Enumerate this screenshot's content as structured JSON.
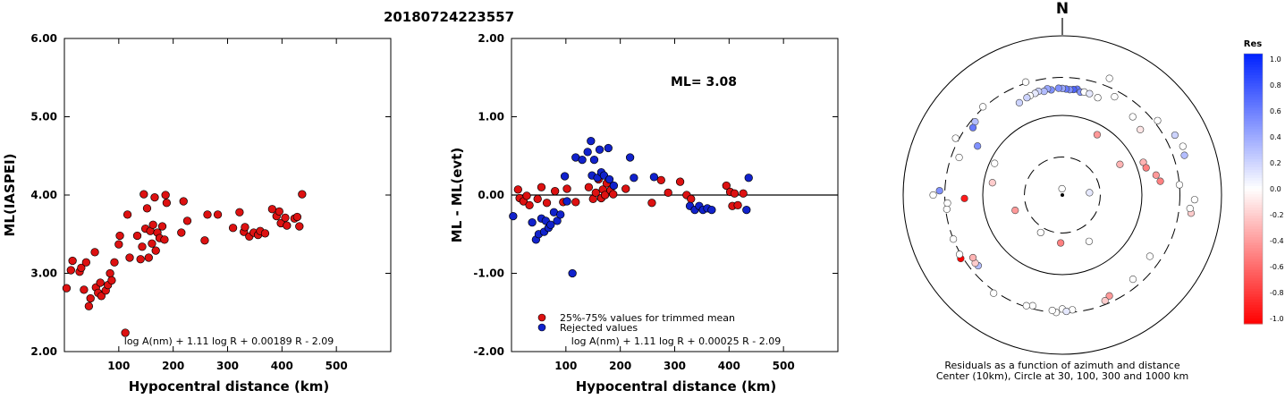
{
  "event_id": "20180724223557",
  "chart_data": [
    {
      "type": "scatter",
      "xlabel": "Hypocentral distance (km)",
      "ylabel": "ML(IASPEI)",
      "xlim": [
        0,
        600
      ],
      "ylim": [
        2.0,
        6.0
      ],
      "xticks": [
        100,
        200,
        300,
        400,
        500
      ],
      "xtick_labels": [
        "100",
        "200",
        "300",
        "400",
        "500"
      ],
      "yticks": [
        2.0,
        3.0,
        4.0,
        5.0,
        6.0
      ],
      "ytick_labels": [
        "2.00",
        "3.00",
        "4.00",
        "5.00",
        "6.00"
      ],
      "formula": "log A(nm) + 1.11 log R + 0.00189 R - 2.09",
      "color": "#dd1111",
      "points": [
        [
          4,
          2.81
        ],
        [
          12,
          3.04
        ],
        [
          15,
          3.16
        ],
        [
          28,
          3.02
        ],
        [
          31,
          3.07
        ],
        [
          36,
          2.79
        ],
        [
          40,
          3.14
        ],
        [
          45,
          2.58
        ],
        [
          48,
          2.68
        ],
        [
          56,
          3.27
        ],
        [
          58,
          2.82
        ],
        [
          62,
          2.75
        ],
        [
          66,
          2.88
        ],
        [
          68,
          2.71
        ],
        [
          76,
          2.78
        ],
        [
          80,
          2.85
        ],
        [
          84,
          3.0
        ],
        [
          87,
          2.91
        ],
        [
          92,
          3.14
        ],
        [
          100,
          3.37
        ],
        [
          102,
          3.48
        ],
        [
          112,
          2.24
        ],
        [
          116,
          3.75
        ],
        [
          120,
          3.2
        ],
        [
          134,
          3.48
        ],
        [
          140,
          3.18
        ],
        [
          143,
          3.34
        ],
        [
          146,
          4.01
        ],
        [
          149,
          3.57
        ],
        [
          152,
          3.83
        ],
        [
          155,
          3.2
        ],
        [
          158,
          3.54
        ],
        [
          161,
          3.38
        ],
        [
          163,
          3.62
        ],
        [
          166,
          3.97
        ],
        [
          168,
          3.29
        ],
        [
          171,
          3.52
        ],
        [
          175,
          3.45
        ],
        [
          180,
          3.6
        ],
        [
          184,
          3.43
        ],
        [
          186,
          4.0
        ],
        [
          188,
          3.9
        ],
        [
          215,
          3.52
        ],
        [
          219,
          3.92
        ],
        [
          226,
          3.67
        ],
        [
          258,
          3.42
        ],
        [
          263,
          3.75
        ],
        [
          282,
          3.75
        ],
        [
          310,
          3.58
        ],
        [
          322,
          3.78
        ],
        [
          330,
          3.53
        ],
        [
          332,
          3.59
        ],
        [
          340,
          3.47
        ],
        [
          348,
          3.52
        ],
        [
          356,
          3.49
        ],
        [
          360,
          3.54
        ],
        [
          369,
          3.51
        ],
        [
          382,
          3.82
        ],
        [
          390,
          3.73
        ],
        [
          395,
          3.79
        ],
        [
          398,
          3.64
        ],
        [
          406,
          3.71
        ],
        [
          409,
          3.61
        ],
        [
          423,
          3.7
        ],
        [
          428,
          3.72
        ],
        [
          432,
          3.6
        ],
        [
          437,
          4.01
        ]
      ]
    },
    {
      "type": "scatter",
      "xlabel": "Hypocentral distance (km)",
      "ylabel": "ML - ML(evt)",
      "xlim": [
        0,
        600
      ],
      "ylim": [
        -2.0,
        2.0
      ],
      "xticks": [
        100,
        200,
        300,
        400,
        500
      ],
      "xtick_labels": [
        "100",
        "200",
        "300",
        "400",
        "500"
      ],
      "yticks": [
        -2.0,
        -1.0,
        0.0,
        1.0,
        2.0
      ],
      "ytick_labels": [
        "-2.00",
        "-1.00",
        "0.00",
        "1.00",
        "2.00"
      ],
      "annotation": "ML= 3.08",
      "formula": "log A(nm) + 1.11 log R + 0.00025 R - 2.09",
      "legend": [
        {
          "label": "25%-75% values for trimmed mean",
          "color": "#dd1111"
        },
        {
          "label": "Rejected values",
          "color": "#1122cc"
        }
      ],
      "legend_position": "bottom-left",
      "series": [
        {
          "name": "25%-75% values for trimmed mean",
          "color": "#dd1111",
          "points": [
            [
              12,
              0.07
            ],
            [
              15,
              -0.04
            ],
            [
              22,
              -0.08
            ],
            [
              28,
              -0.01
            ],
            [
              33,
              -0.13
            ],
            [
              48,
              -0.05
            ],
            [
              55,
              0.1
            ],
            [
              65,
              -0.1
            ],
            [
              80,
              0.05
            ],
            [
              95,
              -0.09
            ],
            [
              102,
              0.08
            ],
            [
              118,
              -0.09
            ],
            [
              142,
              0.1
            ],
            [
              150,
              -0.05
            ],
            [
              155,
              0.03
            ],
            [
              160,
              0.2
            ],
            [
              165,
              -0.04
            ],
            [
              168,
              0.07
            ],
            [
              172,
              0.0
            ],
            [
              175,
              0.15
            ],
            [
              182,
              0.06
            ],
            [
              187,
              0.01
            ],
            [
              210,
              0.08
            ],
            [
              258,
              -0.1
            ],
            [
              275,
              0.19
            ],
            [
              288,
              0.03
            ],
            [
              310,
              0.17
            ],
            [
              322,
              0.0
            ],
            [
              330,
              -0.05
            ],
            [
              395,
              0.12
            ],
            [
              402,
              0.04
            ],
            [
              406,
              -0.14
            ],
            [
              410,
              0.02
            ],
            [
              416,
              -0.13
            ],
            [
              426,
              0.02
            ]
          ]
        },
        {
          "name": "Rejected values",
          "color": "#1122cc",
          "points": [
            [
              3,
              -0.27
            ],
            [
              38,
              -0.35
            ],
            [
              45,
              -0.57
            ],
            [
              50,
              -0.5
            ],
            [
              55,
              -0.3
            ],
            [
              60,
              -0.47
            ],
            [
              63,
              -0.33
            ],
            [
              68,
              -0.42
            ],
            [
              72,
              -0.38
            ],
            [
              78,
              -0.22
            ],
            [
              84,
              -0.33
            ],
            [
              90,
              -0.25
            ],
            [
              98,
              0.24
            ],
            [
              102,
              -0.08
            ],
            [
              112,
              -1.0
            ],
            [
              118,
              0.48
            ],
            [
              130,
              0.45
            ],
            [
              140,
              0.55
            ],
            [
              146,
              0.69
            ],
            [
              148,
              0.25
            ],
            [
              152,
              0.45
            ],
            [
              158,
              0.22
            ],
            [
              162,
              0.58
            ],
            [
              165,
              0.29
            ],
            [
              170,
              0.25
            ],
            [
              178,
              0.6
            ],
            [
              180,
              0.2
            ],
            [
              188,
              0.12
            ],
            [
              218,
              0.48
            ],
            [
              225,
              0.22
            ],
            [
              262,
              0.23
            ],
            [
              328,
              -0.14
            ],
            [
              337,
              -0.19
            ],
            [
              345,
              -0.14
            ],
            [
              352,
              -0.19
            ],
            [
              360,
              -0.17
            ],
            [
              368,
              -0.19
            ],
            [
              432,
              -0.19
            ],
            [
              436,
              0.22
            ]
          ]
        }
      ]
    },
    {
      "type": "scatter",
      "subtype": "polar residual map",
      "north_label": "N",
      "caption": [
        "Residuals as a function of azimuth and distance",
        "Center (10km), Circle at 30, 100, 300 and 1000 km"
      ],
      "colorbar": {
        "title": "Res",
        "range": [
          -1.0,
          1.0
        ],
        "tick_labels": [
          "1.0",
          "0.8",
          "0.6",
          "0.4",
          "0.2",
          "0.0",
          "-0.2",
          "-0.4",
          "-0.6",
          "-0.8",
          "-1.0"
        ],
        "positive_color": "#0022ff",
        "negative_color": "#ff0000"
      },
      "circles_km": [
        30,
        100,
        300,
        1000
      ],
      "points": [
        {
          "az": 357,
          "dist": 12,
          "res": 0.0
        },
        {
          "az": 85,
          "dist": 22,
          "res": 0.1
        },
        {
          "az": 30,
          "dist": 75,
          "res": -0.4
        },
        {
          "az": 62,
          "dist": 66,
          "res": -0.3
        },
        {
          "az": 280,
          "dist": 78,
          "res": -0.2
        },
        {
          "az": 252,
          "dist": 42,
          "res": -0.4
        },
        {
          "az": 182,
          "dist": 40,
          "res": -0.5
        },
        {
          "az": 150,
          "dist": 47,
          "res": 0.0
        },
        {
          "az": 210,
          "dist": 35,
          "res": 0.0
        },
        {
          "az": 295,
          "dist": 87,
          "res": 0.0
        },
        {
          "az": 68,
          "dist": 125,
          "res": -0.3
        },
        {
          "az": 72,
          "dist": 128,
          "res": -0.5
        },
        {
          "az": 78,
          "dist": 160,
          "res": -0.4
        },
        {
          "az": 82,
          "dist": 175,
          "res": -0.5
        },
        {
          "az": 50,
          "dist": 190,
          "res": -0.1
        },
        {
          "az": 42,
          "dist": 210,
          "res": 0.0
        },
        {
          "az": 335,
          "dist": 190,
          "res": 0.2
        },
        {
          "az": 300,
          "dist": 170,
          "res": 0.5
        },
        {
          "az": 268,
          "dist": 170,
          "res": -0.9
        },
        {
          "az": 8,
          "dist": 220,
          "res": 0.6
        },
        {
          "az": 6,
          "dist": 215,
          "res": 0.7
        },
        {
          "az": 4,
          "dist": 212,
          "res": 0.5
        },
        {
          "az": 2,
          "dist": 215,
          "res": 0.6
        },
        {
          "az": 0,
          "dist": 218,
          "res": 0.4
        },
        {
          "az": 358,
          "dist": 220,
          "res": 0.5
        },
        {
          "az": 354,
          "dist": 213,
          "res": 0.5
        },
        {
          "az": 352,
          "dist": 223,
          "res": 0.4
        },
        {
          "az": 350,
          "dist": 210,
          "res": 0.3
        },
        {
          "az": 347,
          "dist": 217,
          "res": 0.2
        },
        {
          "az": 345,
          "dist": 210,
          "res": 0.1
        },
        {
          "az": 342,
          "dist": 205,
          "res": 0.0
        },
        {
          "az": 340,
          "dist": 200,
          "res": 0.2
        },
        {
          "az": 10,
          "dist": 205,
          "res": 0.5
        },
        {
          "az": 12,
          "dist": 210,
          "res": 0.0
        },
        {
          "az": 15,
          "dist": 208,
          "res": 0.1
        },
        {
          "az": 20,
          "dist": 200,
          "res": 0.0
        },
        {
          "az": 28,
          "dist": 250,
          "res": 0.0
        },
        {
          "az": 342,
          "dist": 310,
          "res": 0.0
        },
        {
          "az": 318,
          "dist": 310,
          "res": 0.0
        },
        {
          "az": 310,
          "dist": 270,
          "res": 0.3
        },
        {
          "az": 307,
          "dist": 255,
          "res": 0.6
        },
        {
          "az": 290,
          "dist": 240,
          "res": 0.0
        },
        {
          "az": 298,
          "dist": 330,
          "res": 0.0
        },
        {
          "az": 22,
          "dist": 380,
          "res": 0.0
        },
        {
          "az": 52,
          "dist": 330,
          "res": 0.0
        },
        {
          "az": 62,
          "dist": 400,
          "res": 0.2
        },
        {
          "az": 68,
          "dist": 430,
          "res": 0.0
        },
        {
          "az": 72,
          "dist": 410,
          "res": 0.3
        },
        {
          "az": 85,
          "dist": 300,
          "res": 0.0
        },
        {
          "az": 98,
          "dist": 430,
          "res": -0.2
        },
        {
          "az": 96,
          "dist": 410,
          "res": 0.0
        },
        {
          "az": 92,
          "dist": 460,
          "res": 0.0
        },
        {
          "az": 125,
          "dist": 220,
          "res": 0.0
        },
        {
          "az": 140,
          "dist": 240,
          "res": 0.0
        },
        {
          "az": 155,
          "dist": 250,
          "res": -0.4
        },
        {
          "az": 158,
          "dist": 270,
          "res": -0.2
        },
        {
          "az": 175,
          "dist": 280,
          "res": 0.0
        },
        {
          "az": 180,
          "dist": 270,
          "res": 0.0
        },
        {
          "az": 178,
          "dist": 290,
          "res": 0.1
        },
        {
          "az": 183,
          "dist": 300,
          "res": 0.0
        },
        {
          "az": 185,
          "dist": 285,
          "res": 0.0
        },
        {
          "az": 195,
          "dist": 275,
          "res": 0.0
        },
        {
          "az": 198,
          "dist": 290,
          "res": 0.0
        },
        {
          "az": 215,
          "dist": 320,
          "res": 0.0
        },
        {
          "az": 230,
          "dist": 240,
          "res": 0.3
        },
        {
          "az": 232,
          "dist": 245,
          "res": -0.2
        },
        {
          "az": 235,
          "dist": 235,
          "res": -0.3
        },
        {
          "az": 238,
          "dist": 320,
          "res": -1.0
        },
        {
          "az": 240,
          "dist": 310,
          "res": 0.0
        },
        {
          "az": 248,
          "dist": 300,
          "res": 0.0
        },
        {
          "az": 263,
          "dist": 290,
          "res": 0.0
        },
        {
          "az": 266,
          "dist": 280,
          "res": 0.0
        },
        {
          "az": 272,
          "dist": 350,
          "res": 0.5
        },
        {
          "az": 270,
          "dist": 420,
          "res": 0.0
        }
      ]
    }
  ]
}
